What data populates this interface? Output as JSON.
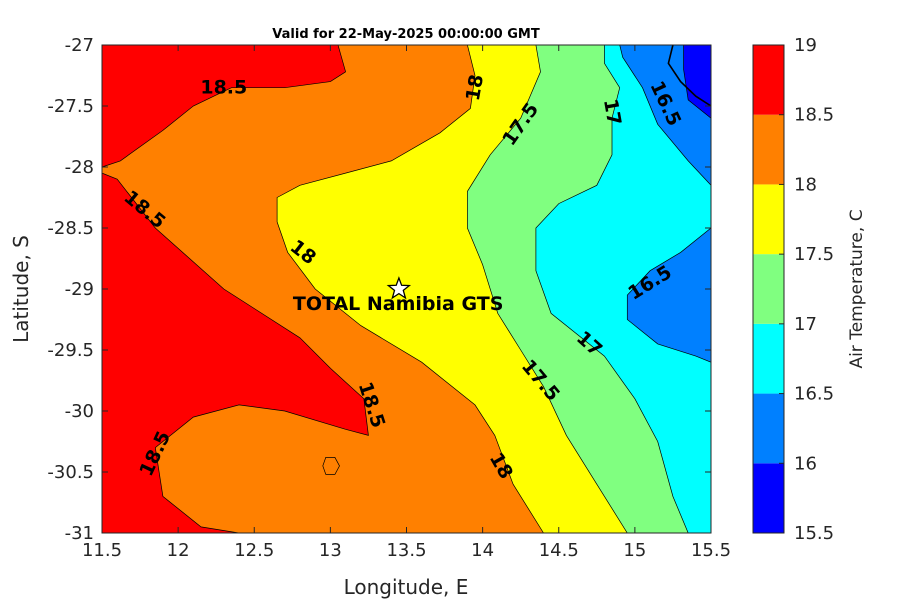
{
  "chart_data": {
    "type": "contour",
    "title": "Valid for 22-May-2025 00:00:00 GMT",
    "xlabel": "Longitude, E",
    "ylabel": "Latitude, S",
    "colorbar_label": "Air Temperature, C",
    "xlim": [
      11.5,
      15.5
    ],
    "ylim": [
      -31,
      -27
    ],
    "xticks": [
      11.5,
      12,
      12.5,
      13,
      13.5,
      14,
      14.5,
      15,
      15.5
    ],
    "xtick_labels": [
      "11.5",
      "12",
      "12.5",
      "13",
      "13.5",
      "14",
      "14.5",
      "15",
      "15.5"
    ],
    "yticks": [
      -27,
      -27.5,
      -28,
      -28.5,
      -29,
      -29.5,
      -30,
      -30.5,
      -31
    ],
    "ytick_labels": [
      "-27",
      "-27.5",
      "-28",
      "-28.5",
      "-29",
      "-29.5",
      "-30",
      "-30.5",
      "-31"
    ],
    "colorbar": {
      "range": [
        15.5,
        19
      ],
      "levels": [
        15.5,
        16,
        16.5,
        17,
        17.5,
        18,
        18.5,
        19
      ],
      "tick_labels": [
        "15.5",
        "16",
        "16.5",
        "17",
        "17.5",
        "18",
        "18.5",
        "19"
      ],
      "colors": [
        "#0000ff",
        "#0080ff",
        "#00ffff",
        "#80ff80",
        "#ffff00",
        "#ff8000",
        "#ff0000",
        "#800000"
      ]
    },
    "marker": {
      "label": "TOTAL Namibia GTS",
      "lon": 13.45,
      "lat": -29.0,
      "symbol": "star"
    },
    "contour_labels": [
      {
        "text": "18.5",
        "lon": 12.3,
        "lat": -27.35,
        "rot": 0
      },
      {
        "text": "18",
        "lon": 13.95,
        "lat": -27.35,
        "rot": -80
      },
      {
        "text": "17.5",
        "lon": 14.25,
        "lat": -27.65,
        "rot": -55
      },
      {
        "text": "17",
        "lon": 14.85,
        "lat": -27.55,
        "rot": 80
      },
      {
        "text": "16.5",
        "lon": 15.2,
        "lat": -27.48,
        "rot": 65
      },
      {
        "text": "18.5",
        "lon": 11.78,
        "lat": -28.35,
        "rot": 40
      },
      {
        "text": "18",
        "lon": 12.82,
        "lat": -28.7,
        "rot": 38
      },
      {
        "text": "16.5",
        "lon": 15.1,
        "lat": -28.95,
        "rot": -32
      },
      {
        "text": "17",
        "lon": 14.7,
        "lat": -29.45,
        "rot": 42
      },
      {
        "text": "17.5",
        "lon": 14.38,
        "lat": -29.75,
        "rot": 50
      },
      {
        "text": "18.5",
        "lon": 13.27,
        "lat": -29.95,
        "rot": 72
      },
      {
        "text": "18.5",
        "lon": 11.85,
        "lat": -30.35,
        "rot": -65
      },
      {
        "text": "18",
        "lon": 14.12,
        "lat": -30.45,
        "rot": 60
      }
    ],
    "regions": [
      {
        "name": "18-18.5",
        "level": 18,
        "color": "#ff8000",
        "path": [
          [
            11.5,
            -28.0
          ],
          [
            11.62,
            -27.95
          ],
          [
            11.9,
            -27.7
          ],
          [
            12.1,
            -27.5
          ],
          [
            12.35,
            -27.35
          ],
          [
            12.7,
            -27.35
          ],
          [
            13.0,
            -27.3
          ],
          [
            13.1,
            -27.22
          ],
          [
            13.05,
            -27.0
          ],
          [
            15.5,
            -27.0
          ],
          [
            15.5,
            -31.0
          ],
          [
            12.4,
            -31.0
          ],
          [
            12.15,
            -30.95
          ],
          [
            11.9,
            -30.7
          ],
          [
            11.85,
            -30.3
          ],
          [
            12.1,
            -30.05
          ],
          [
            12.4,
            -29.95
          ],
          [
            12.7,
            -30.0
          ],
          [
            13.1,
            -30.15
          ],
          [
            13.25,
            -30.2
          ],
          [
            13.22,
            -29.9
          ],
          [
            13.0,
            -29.65
          ],
          [
            12.8,
            -29.4
          ],
          [
            12.3,
            -29.0
          ],
          [
            11.85,
            -28.5
          ],
          [
            11.6,
            -28.1
          ],
          [
            11.5,
            -28.05
          ]
        ]
      },
      {
        "name": "17.5-18",
        "level": 17.5,
        "color": "#ffff00",
        "path": [
          [
            12.65,
            -28.25
          ],
          [
            12.8,
            -28.15
          ],
          [
            13.1,
            -28.05
          ],
          [
            13.4,
            -27.95
          ],
          [
            13.72,
            -27.72
          ],
          [
            13.92,
            -27.52
          ],
          [
            13.95,
            -27.25
          ],
          [
            13.9,
            -27.0
          ],
          [
            15.5,
            -27.0
          ],
          [
            15.5,
            -31.0
          ],
          [
            13.3,
            -31.0
          ],
          [
            14.4,
            -31.0
          ],
          [
            14.2,
            -30.6
          ],
          [
            14.08,
            -30.2
          ],
          [
            13.95,
            -29.95
          ],
          [
            13.6,
            -29.6
          ],
          [
            13.2,
            -29.3
          ],
          [
            12.9,
            -29.0
          ],
          [
            12.72,
            -28.7
          ],
          [
            12.65,
            -28.45
          ]
        ]
      },
      {
        "name": "17-17.5",
        "level": 17,
        "color": "#80ff80",
        "path": [
          [
            14.35,
            -27.0
          ],
          [
            14.38,
            -27.22
          ],
          [
            14.25,
            -27.6
          ],
          [
            14.05,
            -27.9
          ],
          [
            13.9,
            -28.2
          ],
          [
            13.9,
            -28.5
          ],
          [
            14.0,
            -28.8
          ],
          [
            14.1,
            -29.2
          ],
          [
            14.25,
            -29.5
          ],
          [
            14.4,
            -29.8
          ],
          [
            14.55,
            -30.2
          ],
          [
            14.75,
            -30.6
          ],
          [
            14.95,
            -31.0
          ],
          [
            15.5,
            -31.0
          ],
          [
            15.5,
            -27.0
          ]
        ]
      },
      {
        "name": "16.5-17",
        "level": 16.5,
        "color": "#00ffff",
        "path": [
          [
            14.8,
            -27.0
          ],
          [
            14.8,
            -27.15
          ],
          [
            14.9,
            -27.35
          ],
          [
            14.85,
            -27.6
          ],
          [
            14.85,
            -27.9
          ],
          [
            14.75,
            -28.15
          ],
          [
            14.5,
            -28.3
          ],
          [
            14.35,
            -28.5
          ],
          [
            14.35,
            -28.85
          ],
          [
            14.45,
            -29.2
          ],
          [
            14.8,
            -29.55
          ],
          [
            15.0,
            -29.9
          ],
          [
            15.15,
            -30.25
          ],
          [
            15.25,
            -30.7
          ],
          [
            15.35,
            -31.0
          ],
          [
            15.5,
            -31.0
          ],
          [
            15.5,
            -27.0
          ]
        ]
      },
      {
        "name": "16-16.5",
        "level": 16,
        "color": "#0080ff",
        "path": [
          [
            15.5,
            -28.15
          ],
          [
            15.35,
            -27.95
          ],
          [
            15.15,
            -27.65
          ],
          [
            15.05,
            -27.35
          ],
          [
            14.92,
            -27.1
          ],
          [
            14.9,
            -27.0
          ],
          [
            15.5,
            -27.0
          ]
        ]
      },
      {
        "name": "16-16.5",
        "level": 16,
        "color": "#0080ff",
        "path": [
          [
            15.5,
            -28.5
          ],
          [
            15.3,
            -28.7
          ],
          [
            15.1,
            -28.85
          ],
          [
            14.95,
            -29.05
          ],
          [
            14.95,
            -29.25
          ],
          [
            15.15,
            -29.45
          ],
          [
            15.4,
            -29.55
          ],
          [
            15.5,
            -29.6
          ]
        ]
      },
      {
        "name": "15.5-16",
        "level": 15.5,
        "color": "#0000ff",
        "path": [
          [
            15.5,
            -27.0
          ],
          [
            15.32,
            -27.0
          ],
          [
            15.32,
            -27.2
          ],
          [
            15.35,
            -27.45
          ],
          [
            15.5,
            -27.6
          ]
        ]
      },
      {
        "name": "18-18.5",
        "level": 18,
        "color": "#ff8000",
        "path": [
          [
            12.95,
            -30.45
          ],
          [
            12.97,
            -30.38
          ],
          [
            13.03,
            -30.38
          ],
          [
            13.06,
            -30.45
          ],
          [
            13.03,
            -30.52
          ],
          [
            12.97,
            -30.52
          ]
        ]
      }
    ],
    "coastline": [
      [
        15.25,
        -27.0
      ],
      [
        15.22,
        -27.15
      ],
      [
        15.3,
        -27.3
      ],
      [
        15.4,
        -27.42
      ],
      [
        15.5,
        -27.5
      ]
    ]
  }
}
